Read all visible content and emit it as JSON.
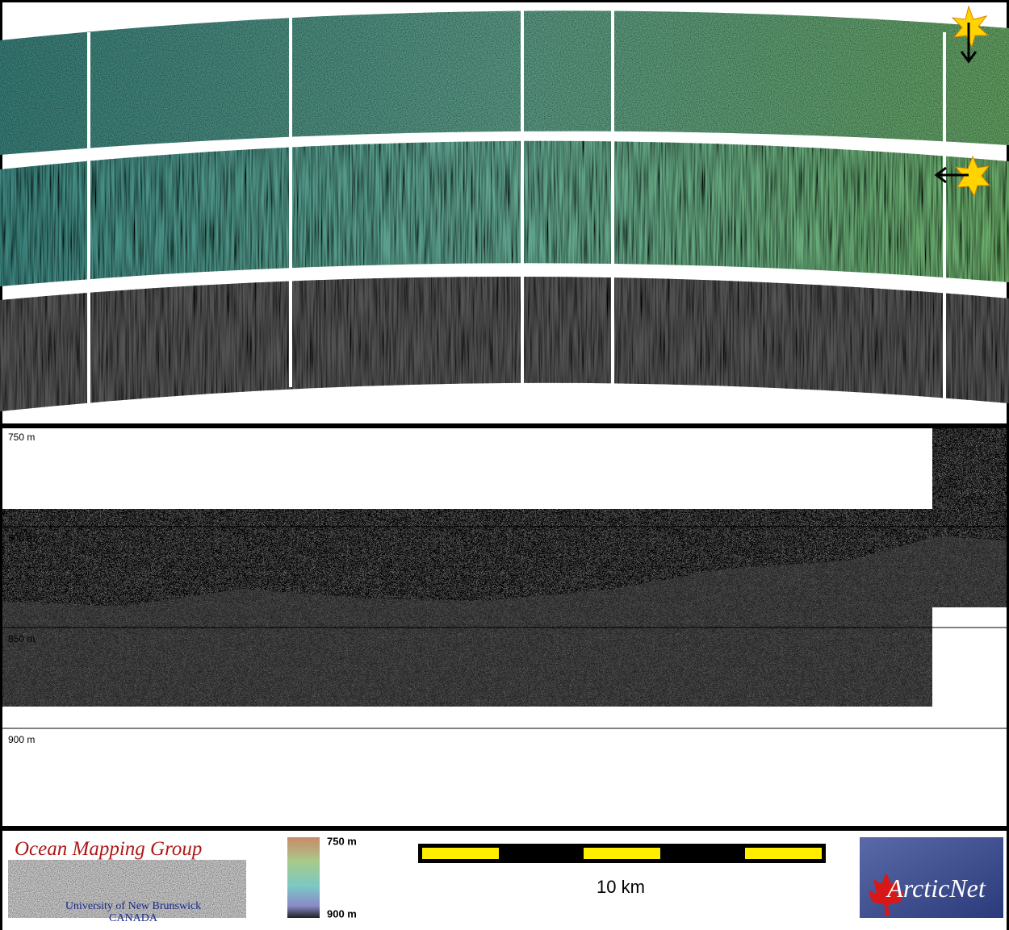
{
  "profile": {
    "depth_labels": [
      "750 m",
      "800 m",
      "850 m",
      "900 m"
    ]
  },
  "legend": {
    "color_scale": {
      "top": "750 m",
      "bottom": "900 m"
    },
    "scale_bar": "10 km"
  },
  "logos": {
    "omg": {
      "title": "Ocean Mapping Group",
      "line1": "University of New Brunswick",
      "line2": "CANADA"
    },
    "arcticnet": "ArcticNet"
  }
}
